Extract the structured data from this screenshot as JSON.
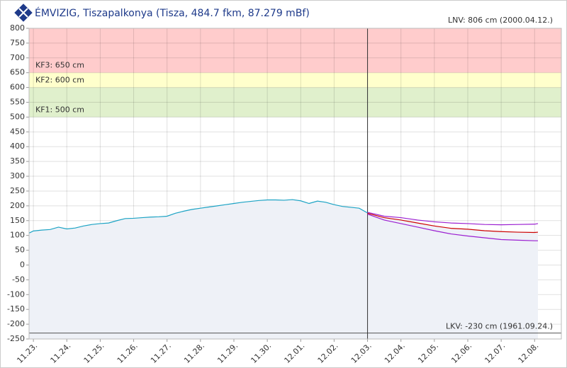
{
  "chart_data": {
    "type": "line",
    "title": "ÉMVIZIG, Tiszapalkonya (Tisza, 484.7 fkm, 87.279 mBf)",
    "xlim": [
      -0.13,
      15.8
    ],
    "xticks": [
      {
        "value": 0,
        "label": "11.23."
      },
      {
        "value": 1,
        "label": "11.24."
      },
      {
        "value": 2,
        "label": "11.25."
      },
      {
        "value": 3,
        "label": "11.26."
      },
      {
        "value": 4,
        "label": "11.27."
      },
      {
        "value": 5,
        "label": "11.28."
      },
      {
        "value": 6,
        "label": "11.29."
      },
      {
        "value": 7,
        "label": "11.30."
      },
      {
        "value": 8,
        "label": "12.01."
      },
      {
        "value": 9,
        "label": "12.02."
      },
      {
        "value": 10,
        "label": "12.03."
      },
      {
        "value": 11,
        "label": "12.04."
      },
      {
        "value": 12,
        "label": "12.05."
      },
      {
        "value": 13,
        "label": "12.06."
      },
      {
        "value": 14,
        "label": "12.07."
      },
      {
        "value": 15,
        "label": "12.08."
      }
    ],
    "ylim": [
      -250,
      800
    ],
    "yticks": [
      800,
      750,
      700,
      650,
      600,
      550,
      500,
      450,
      400,
      350,
      300,
      250,
      200,
      150,
      100,
      50,
      0,
      -50,
      -100,
      -150,
      -200,
      -250
    ],
    "grid": true,
    "bands": [
      {
        "label": "KF3: 650 cm",
        "from": 650,
        "to": 800,
        "color": "#ffcccc"
      },
      {
        "label": "KF2: 600 cm",
        "from": 600,
        "to": 650,
        "color": "#ffffcc"
      },
      {
        "label": "KF1: 500 cm",
        "from": 500,
        "to": 600,
        "color": "#e0f0cc"
      }
    ],
    "reference_lines": [
      {
        "label": "LNV: 806 cm (2000.04.12.)",
        "value": 806
      },
      {
        "label": "LKV: -230 cm (1961.09.24.)",
        "value": -230
      }
    ],
    "vline_x": 10,
    "series": [
      {
        "color": "#1ca3c4",
        "fill": "#eef1f7",
        "x": [
          -0.13,
          0,
          0.25,
          0.5,
          0.75,
          1,
          1.25,
          1.5,
          1.75,
          2,
          2.25,
          2.5,
          2.75,
          3,
          3.25,
          3.5,
          3.75,
          4,
          4.25,
          4.5,
          4.75,
          5,
          5.25,
          5.5,
          5.75,
          6,
          6.25,
          6.5,
          6.75,
          7,
          7.25,
          7.5,
          7.75,
          8,
          8.25,
          8.5,
          8.75,
          9,
          9.25,
          9.5,
          9.75,
          10
        ],
        "values": [
          108,
          115,
          118,
          120,
          128,
          122,
          125,
          132,
          137,
          140,
          142,
          150,
          157,
          158,
          160,
          162,
          163,
          165,
          175,
          182,
          188,
          192,
          196,
          200,
          204,
          208,
          212,
          215,
          218,
          220,
          220,
          219,
          221,
          217,
          208,
          216,
          212,
          204,
          198,
          195,
          192,
          176
        ]
      },
      {
        "color": "#9b1fd1",
        "x": [
          10,
          10.5,
          11,
          11.5,
          12,
          12.5,
          13,
          13.5,
          14,
          14.5,
          15,
          15.1
        ],
        "values": [
          178,
          165,
          160,
          152,
          146,
          142,
          140,
          137,
          136,
          137,
          138,
          140
        ]
      },
      {
        "color": "#cc0000",
        "fill": "#eef1f7",
        "x": [
          10,
          10.5,
          11,
          11.5,
          12,
          12.5,
          13,
          13.5,
          14,
          14.5,
          15,
          15.1
        ],
        "values": [
          175,
          160,
          152,
          142,
          132,
          124,
          121,
          116,
          113,
          111,
          110,
          111
        ]
      },
      {
        "color": "#9b1fd1",
        "x": [
          10,
          10.5,
          11,
          11.5,
          12,
          12.5,
          13,
          13.5,
          14,
          14.5,
          15,
          15.1
        ],
        "values": [
          172,
          152,
          140,
          128,
          116,
          105,
          98,
          92,
          86,
          84,
          82,
          82
        ]
      }
    ]
  }
}
